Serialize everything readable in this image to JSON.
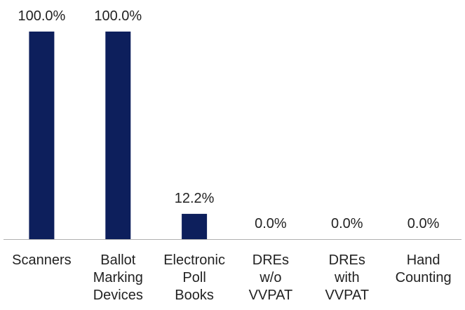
{
  "chart_data": {
    "type": "bar",
    "categories": [
      "Scanners",
      "Ballot Marking Devices",
      "Electronic Poll Books",
      "DREs w/o VVPAT",
      "DREs with VVPAT",
      "Hand Counting"
    ],
    "category_lines": [
      [
        "Scanners"
      ],
      [
        "Ballot",
        "Marking",
        "Devices"
      ],
      [
        "Electronic",
        "Poll",
        "Books"
      ],
      [
        "DREs",
        "w/o",
        "VVPAT"
      ],
      [
        "DREs",
        "with",
        "VVPAT"
      ],
      [
        "Hand",
        "Counting"
      ]
    ],
    "values": [
      100.0,
      100.0,
      12.2,
      0.0,
      0.0,
      0.0
    ],
    "data_labels": [
      "100.0%",
      "100.0%",
      "12.2%",
      "0.0%",
      "0.0%",
      "0.0%"
    ],
    "ylim": [
      0,
      100
    ],
    "grid": false,
    "legend": false,
    "title": "",
    "xlabel": "",
    "ylabel": ""
  },
  "colors": {
    "bar": "#0d1f5c",
    "axis": "#b0b0b0",
    "text": "#222222"
  }
}
